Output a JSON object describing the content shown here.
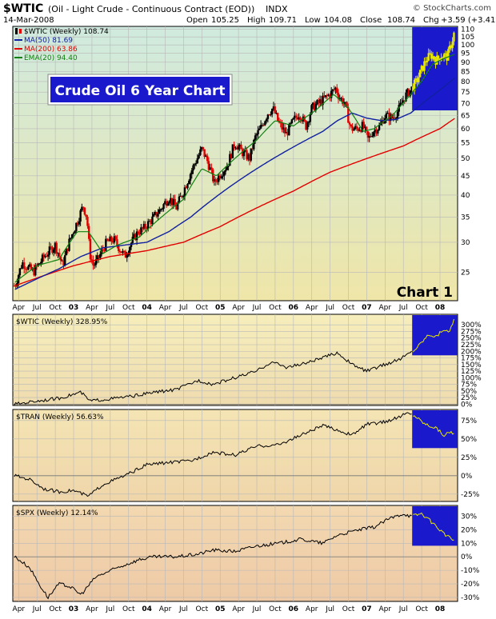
{
  "header": {
    "symbol": "$WTIC",
    "description": "(Oil - Light Crude - Continuous Contract (EOD))",
    "exchange": "INDX",
    "watermark": "© StockCharts.com",
    "date": "14-Mar-2008",
    "open_label": "Open",
    "open": "105.25",
    "high_label": "High",
    "high": "109.71",
    "low_label": "Low",
    "low": "104.08",
    "close_label": "Close",
    "close": "108.74",
    "chg_label": "Chg",
    "chg": "+3.59 (+3.41%)"
  },
  "colors": {
    "price_up": "#000000",
    "price_down": "#e00000",
    "ma50": "#1020a0",
    "ma200": "#e00000",
    "ema20": "#108010",
    "highlight": "#1a1acc",
    "highlight_line": "#e8e800",
    "title_box": "#1a1acc"
  },
  "chart_data": [
    {
      "type": "candlestick",
      "id": "main",
      "title": "Crude Oil 6 Year Chart",
      "label": "Chart 1",
      "scale": "log",
      "ylim": [
        21,
        112
      ],
      "y_ticks": [
        25,
        30,
        35,
        40,
        45,
        50,
        55,
        60,
        65,
        70,
        75,
        80,
        85,
        90,
        95,
        100,
        105,
        110
      ],
      "x_ticks": [
        "Apr",
        "Jul",
        "Oct",
        "03",
        "Apr",
        "Jul",
        "Oct",
        "04",
        "Apr",
        "Jul",
        "Oct",
        "05",
        "Apr",
        "Jul",
        "Oct",
        "06",
        "Apr",
        "Jul",
        "Oct",
        "07",
        "Apr",
        "Jul",
        "Oct",
        "08"
      ],
      "x_range": [
        "2002-03",
        "2008-03"
      ],
      "legend": [
        {
          "key": "price",
          "label": "$WTIC (Weekly) 108.74"
        },
        {
          "key": "ma50",
          "label": "MA(50) 81.69"
        },
        {
          "key": "ma200",
          "label": "MA(200) 63.86"
        },
        {
          "key": "ema20",
          "label": "EMA(20) 94.40"
        }
      ],
      "price_points": [
        [
          2002.2,
          23
        ],
        [
          2002.3,
          26.5
        ],
        [
          2002.45,
          25
        ],
        [
          2002.6,
          27.5
        ],
        [
          2002.75,
          29.5
        ],
        [
          2002.85,
          26
        ],
        [
          2002.95,
          30.5
        ],
        [
          2003.05,
          34
        ],
        [
          2003.13,
          37.5
        ],
        [
          2003.18,
          35
        ],
        [
          2003.22,
          28
        ],
        [
          2003.27,
          26
        ],
        [
          2003.33,
          27
        ],
        [
          2003.45,
          30
        ],
        [
          2003.55,
          30.5
        ],
        [
          2003.62,
          29
        ],
        [
          2003.7,
          27.5
        ],
        [
          2003.77,
          29.5
        ],
        [
          2003.88,
          32
        ],
        [
          2003.95,
          32.5
        ],
        [
          2004.1,
          35
        ],
        [
          2004.2,
          37
        ],
        [
          2004.3,
          39.5
        ],
        [
          2004.4,
          37
        ],
        [
          2004.5,
          41
        ],
        [
          2004.6,
          46
        ],
        [
          2004.75,
          53
        ],
        [
          2004.83,
          49
        ],
        [
          2004.92,
          43
        ],
        [
          2005.0,
          45.5
        ],
        [
          2005.1,
          48
        ],
        [
          2005.2,
          55
        ],
        [
          2005.3,
          52
        ],
        [
          2005.4,
          50
        ],
        [
          2005.48,
          57
        ],
        [
          2005.55,
          60
        ],
        [
          2005.65,
          66
        ],
        [
          2005.72,
          68
        ],
        [
          2005.8,
          62
        ],
        [
          2005.9,
          58
        ],
        [
          2006.0,
          63
        ],
        [
          2006.08,
          66
        ],
        [
          2006.17,
          61
        ],
        [
          2006.25,
          68
        ],
        [
          2006.38,
          71
        ],
        [
          2006.5,
          74
        ],
        [
          2006.58,
          77
        ],
        [
          2006.62,
          73
        ],
        [
          2006.7,
          70
        ],
        [
          2006.78,
          60
        ],
        [
          2006.87,
          60
        ],
        [
          2006.95,
          61
        ],
        [
          2007.02,
          56
        ],
        [
          2007.08,
          59
        ],
        [
          2007.18,
          61
        ],
        [
          2007.25,
          65
        ],
        [
          2007.35,
          64
        ],
        [
          2007.43,
          67
        ],
        [
          2007.52,
          73
        ],
        [
          2007.6,
          76
        ],
        [
          2007.68,
          80
        ],
        [
          2007.75,
          86
        ],
        [
          2007.82,
          92
        ],
        [
          2007.88,
          94
        ],
        [
          2007.95,
          91
        ],
        [
          2008.02,
          94
        ],
        [
          2008.1,
          93
        ],
        [
          2008.15,
          100
        ],
        [
          2008.2,
          108.74
        ]
      ],
      "ma50": [
        [
          2002.2,
          22.5
        ],
        [
          2002.5,
          24
        ],
        [
          2002.8,
          25.5
        ],
        [
          2003.1,
          27.5
        ],
        [
          2003.4,
          29
        ],
        [
          2003.7,
          29.5
        ],
        [
          2004.0,
          30
        ],
        [
          2004.3,
          32
        ],
        [
          2004.6,
          35
        ],
        [
          2004.9,
          39
        ],
        [
          2005.2,
          43
        ],
        [
          2005.5,
          47
        ],
        [
          2005.8,
          51
        ],
        [
          2006.1,
          55
        ],
        [
          2006.4,
          59
        ],
        [
          2006.6,
          63
        ],
        [
          2006.8,
          66
        ],
        [
          2007.0,
          64
        ],
        [
          2007.2,
          63
        ],
        [
          2007.4,
          63.5
        ],
        [
          2007.6,
          66
        ],
        [
          2007.8,
          71
        ],
        [
          2008.0,
          76
        ],
        [
          2008.2,
          81.69
        ]
      ],
      "ma200": [
        [
          2002.2,
          23
        ],
        [
          2002.6,
          24.5
        ],
        [
          2003.0,
          26
        ],
        [
          2003.5,
          27.5
        ],
        [
          2004.0,
          28.5
        ],
        [
          2004.5,
          30
        ],
        [
          2005.0,
          33
        ],
        [
          2005.5,
          37
        ],
        [
          2006.0,
          41
        ],
        [
          2006.5,
          46
        ],
        [
          2007.0,
          50
        ],
        [
          2007.5,
          54
        ],
        [
          2008.0,
          60
        ],
        [
          2008.2,
          63.86
        ]
      ],
      "ema20": [
        [
          2002.2,
          23.5
        ],
        [
          2002.5,
          26
        ],
        [
          2002.8,
          27
        ],
        [
          2003.05,
          32
        ],
        [
          2003.2,
          32
        ],
        [
          2003.4,
          28
        ],
        [
          2003.6,
          29.5
        ],
        [
          2003.9,
          31
        ],
        [
          2004.2,
          35
        ],
        [
          2004.5,
          39
        ],
        [
          2004.75,
          47
        ],
        [
          2004.95,
          45
        ],
        [
          2005.2,
          50
        ],
        [
          2005.5,
          56
        ],
        [
          2005.75,
          63
        ],
        [
          2006.0,
          61
        ],
        [
          2006.3,
          67
        ],
        [
          2006.55,
          74
        ],
        [
          2006.75,
          68
        ],
        [
          2006.95,
          59
        ],
        [
          2007.1,
          60
        ],
        [
          2007.35,
          65
        ],
        [
          2007.55,
          72
        ],
        [
          2007.75,
          80
        ],
        [
          2007.9,
          89
        ],
        [
          2008.05,
          92
        ],
        [
          2008.2,
          94.4
        ]
      ],
      "highlight_x": [
        2007.62,
        2008.25
      ]
    },
    {
      "type": "line",
      "id": "wtic",
      "label": "$WTIC (Weekly) 328.95%",
      "ylim": [
        -5,
        340
      ],
      "y_ticks": [
        0,
        25,
        50,
        75,
        100,
        125,
        150,
        175,
        200,
        225,
        250,
        275,
        300
      ],
      "y_tick_labels": [
        "0%",
        "25%",
        "50%",
        "75%",
        "100%",
        "125%",
        "150%",
        "175%",
        "200%",
        "225%",
        "250%",
        "275%",
        "300%"
      ],
      "points": [
        [
          2002.2,
          0
        ],
        [
          2002.5,
          12
        ],
        [
          2002.8,
          22
        ],
        [
          2003.1,
          45
        ],
        [
          2003.22,
          12
        ],
        [
          2003.5,
          20
        ],
        [
          2003.8,
          30
        ],
        [
          2004.1,
          45
        ],
        [
          2004.4,
          55
        ],
        [
          2004.7,
          90
        ],
        [
          2004.9,
          75
        ],
        [
          2005.2,
          100
        ],
        [
          2005.5,
          125
        ],
        [
          2005.7,
          160
        ],
        [
          2005.9,
          140
        ],
        [
          2006.1,
          150
        ],
        [
          2006.4,
          175
        ],
        [
          2006.6,
          195
        ],
        [
          2006.8,
          150
        ],
        [
          2007.0,
          125
        ],
        [
          2007.2,
          145
        ],
        [
          2007.45,
          170
        ],
        [
          2007.65,
          205
        ],
        [
          2007.85,
          265
        ],
        [
          2007.95,
          255
        ],
        [
          2008.05,
          285
        ],
        [
          2008.12,
          270
        ],
        [
          2008.2,
          328.95
        ]
      ],
      "highlight_x": [
        2007.62,
        2008.25
      ]
    },
    {
      "type": "line",
      "id": "tran",
      "label": "$TRAN (Weekly) 56.63%",
      "ylim": [
        -35,
        90
      ],
      "y_ticks": [
        -25,
        0,
        25,
        50,
        75
      ],
      "y_tick_labels": [
        "-25%",
        "0%",
        "25%",
        "50%",
        "75%"
      ],
      "points": [
        [
          2002.2,
          0
        ],
        [
          2002.4,
          -5
        ],
        [
          2002.6,
          -18
        ],
        [
          2002.8,
          -22
        ],
        [
          2003.0,
          -20
        ],
        [
          2003.2,
          -28
        ],
        [
          2003.4,
          -12
        ],
        [
          2003.7,
          0
        ],
        [
          2004.0,
          15
        ],
        [
          2004.3,
          18
        ],
        [
          2004.6,
          20
        ],
        [
          2004.9,
          32
        ],
        [
          2005.2,
          28
        ],
        [
          2005.5,
          40
        ],
        [
          2005.8,
          42
        ],
        [
          2006.1,
          55
        ],
        [
          2006.4,
          68
        ],
        [
          2006.6,
          62
        ],
        [
          2006.8,
          55
        ],
        [
          2007.0,
          70
        ],
        [
          2007.2,
          72
        ],
        [
          2007.4,
          78
        ],
        [
          2007.55,
          85
        ],
        [
          2007.65,
          82
        ],
        [
          2007.8,
          70
        ],
        [
          2007.95,
          65
        ],
        [
          2008.05,
          55
        ],
        [
          2008.15,
          60
        ],
        [
          2008.2,
          56.63
        ]
      ],
      "highlight_x": [
        2007.62,
        2008.25
      ]
    },
    {
      "type": "line",
      "id": "spx",
      "label": "$SPX (Weekly) 12.14%",
      "ylim": [
        -33,
        38
      ],
      "y_ticks": [
        -30,
        -20,
        -10,
        0,
        10,
        20,
        30
      ],
      "y_tick_labels": [
        "-30%",
        "-20%",
        "-10%",
        "0%",
        "10%",
        "20%",
        "30%"
      ],
      "points": [
        [
          2002.2,
          0
        ],
        [
          2002.4,
          -8
        ],
        [
          2002.55,
          -22
        ],
        [
          2002.65,
          -30
        ],
        [
          2002.8,
          -20
        ],
        [
          2002.95,
          -22
        ],
        [
          2003.1,
          -28
        ],
        [
          2003.3,
          -15
        ],
        [
          2003.6,
          -8
        ],
        [
          2003.9,
          -2
        ],
        [
          2004.1,
          0
        ],
        [
          2004.4,
          0
        ],
        [
          2004.7,
          2
        ],
        [
          2004.9,
          5
        ],
        [
          2005.2,
          4
        ],
        [
          2005.5,
          8
        ],
        [
          2005.8,
          10
        ],
        [
          2006.1,
          13
        ],
        [
          2006.4,
          10
        ],
        [
          2006.6,
          16
        ],
        [
          2006.9,
          20
        ],
        [
          2007.1,
          22
        ],
        [
          2007.3,
          28
        ],
        [
          2007.5,
          32
        ],
        [
          2007.6,
          30
        ],
        [
          2007.75,
          32
        ],
        [
          2007.9,
          25
        ],
        [
          2008.0,
          20
        ],
        [
          2008.1,
          15
        ],
        [
          2008.2,
          12.14
        ]
      ],
      "highlight_x": [
        2007.62,
        2008.25
      ]
    }
  ]
}
